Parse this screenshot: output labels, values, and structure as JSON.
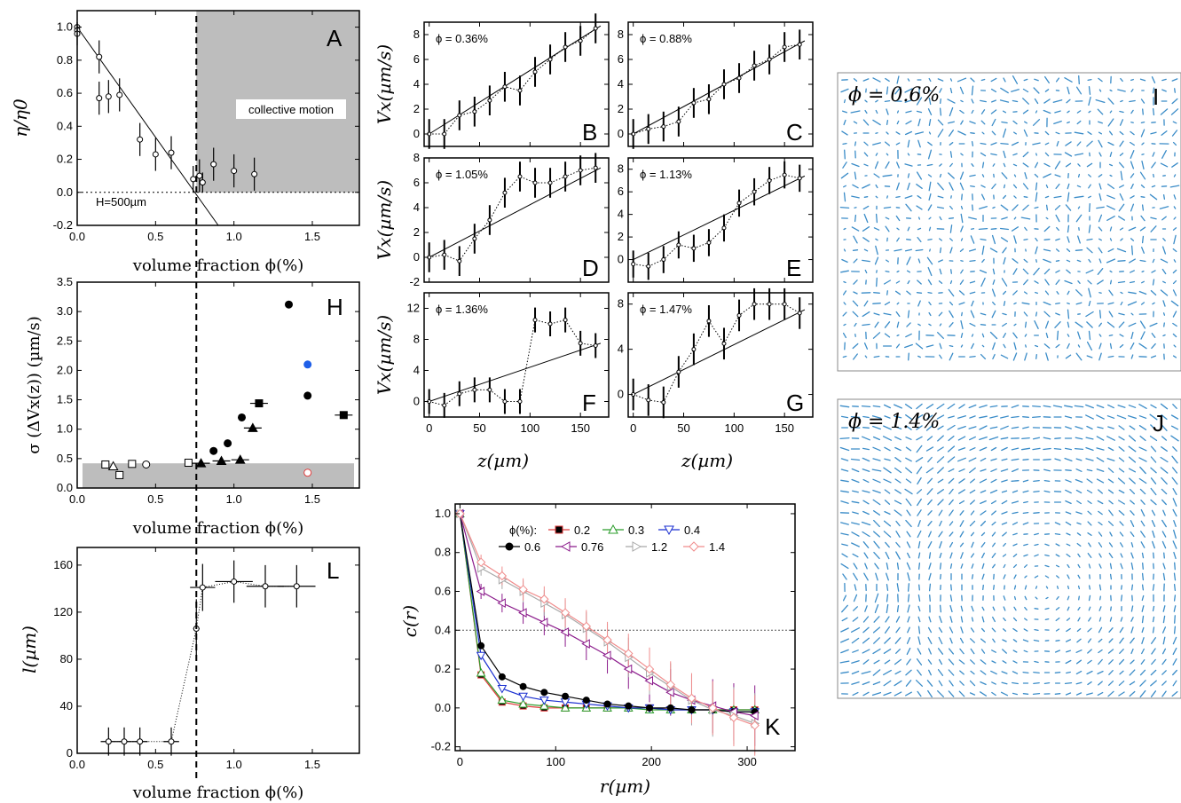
{
  "chart_data": [
    {
      "id": "A",
      "type": "scatter",
      "panel_label": "A",
      "xlabel": "volume fraction ϕ(%)",
      "ylabel": "η/η0",
      "xlim": [
        0,
        1.8
      ],
      "ylim": [
        -0.2,
        1.1
      ],
      "xticks": [
        "0.0",
        "0.5",
        "1.0",
        "1.5"
      ],
      "yticks": [
        "-0.2",
        "0.0",
        "0.2",
        "0.4",
        "0.6",
        "0.8",
        "1.0"
      ],
      "annotations": [
        "collective motion",
        "H=500µm"
      ],
      "shaded_region": {
        "x": [
          0.76,
          1.8
        ],
        "y": [
          0,
          1.1
        ]
      },
      "vline_x": 0.76,
      "points": [
        {
          "x": 0.0,
          "y": 1.0,
          "e": 0.03
        },
        {
          "x": 0.0,
          "y": 0.98,
          "e": 0.04
        },
        {
          "x": 0.0,
          "y": 0.96,
          "e": 0.07
        },
        {
          "x": 0.14,
          "y": 0.82,
          "e": 0.1
        },
        {
          "x": 0.14,
          "y": 0.57,
          "e": 0.1
        },
        {
          "x": 0.2,
          "y": 0.58,
          "e": 0.1
        },
        {
          "x": 0.27,
          "y": 0.59,
          "e": 0.1
        },
        {
          "x": 0.4,
          "y": 0.32,
          "e": 0.1
        },
        {
          "x": 0.5,
          "y": 0.23,
          "e": 0.1
        },
        {
          "x": 0.6,
          "y": 0.24,
          "e": 0.1
        },
        {
          "x": 0.74,
          "y": 0.08,
          "e": 0.08
        },
        {
          "x": 0.78,
          "y": 0.1,
          "e": 0.1
        },
        {
          "x": 0.8,
          "y": 0.06,
          "e": 0.06
        },
        {
          "x": 0.87,
          "y": 0.17,
          "e": 0.1
        },
        {
          "x": 1.0,
          "y": 0.13,
          "e": 0.1
        },
        {
          "x": 1.13,
          "y": 0.11,
          "e": 0.1
        }
      ],
      "fit_line": [
        [
          0,
          1.0
        ],
        [
          0.9,
          -0.2
        ]
      ]
    },
    {
      "id": "H",
      "type": "scatter",
      "panel_label": "H",
      "xlabel": "volume fraction ϕ(%)",
      "ylabel": "σ (ΔVx(z)) (µm/s)",
      "xlim": [
        0,
        1.8
      ],
      "ylim": [
        0,
        3.5
      ],
      "xticks": [
        "0.0",
        "0.5",
        "1.0",
        "1.5"
      ],
      "yticks": [
        "0.0",
        "0.5",
        "1.0",
        "1.5",
        "2.0",
        "2.5",
        "3.0",
        "3.5"
      ],
      "shaded_band": [
        0,
        0.42
      ],
      "points": [
        {
          "x": 0.18,
          "y": 0.4,
          "m": "sq_open"
        },
        {
          "x": 0.23,
          "y": 0.37,
          "m": "tri_open"
        },
        {
          "x": 0.27,
          "y": 0.22,
          "m": "sq_open"
        },
        {
          "x": 0.35,
          "y": 0.41,
          "m": "sq_open"
        },
        {
          "x": 0.44,
          "y": 0.4,
          "m": "ci_open"
        },
        {
          "x": 0.71,
          "y": 0.43,
          "m": "sq_open"
        },
        {
          "x": 0.79,
          "y": 0.42,
          "m": "tri"
        },
        {
          "x": 0.87,
          "y": 0.63,
          "m": "ci"
        },
        {
          "x": 0.92,
          "y": 0.46,
          "m": "tri"
        },
        {
          "x": 0.96,
          "y": 0.76,
          "m": "ci"
        },
        {
          "x": 1.04,
          "y": 0.48,
          "m": "tri"
        },
        {
          "x": 1.05,
          "y": 1.2,
          "m": "ci"
        },
        {
          "x": 1.12,
          "y": 1.02,
          "m": "tri"
        },
        {
          "x": 1.16,
          "y": 1.44,
          "m": "sq"
        },
        {
          "x": 1.35,
          "y": 3.12,
          "m": "ci"
        },
        {
          "x": 1.47,
          "y": 2.1,
          "m": "ci_blue"
        },
        {
          "x": 1.47,
          "y": 1.57,
          "m": "ci"
        },
        {
          "x": 1.47,
          "y": 0.26,
          "m": "ci_red"
        },
        {
          "x": 1.7,
          "y": 1.24,
          "m": "sq"
        }
      ]
    },
    {
      "id": "L",
      "type": "line",
      "panel_label": "L",
      "xlabel": "volume fraction ϕ(%)",
      "ylabel": "l(µm)",
      "xlim": [
        0,
        1.8
      ],
      "ylim": [
        0,
        175
      ],
      "xticks": [
        "0.0",
        "0.5",
        "1.0",
        "1.5"
      ],
      "yticks": [
        "0",
        "40",
        "80",
        "120",
        "160"
      ],
      "points": [
        {
          "x": 0.2,
          "y": 10,
          "ex": 0.05,
          "ey": 12
        },
        {
          "x": 0.3,
          "y": 10,
          "ex": 0.05,
          "ey": 12
        },
        {
          "x": 0.4,
          "y": 10,
          "ex": 0.05,
          "ey": 12
        },
        {
          "x": 0.6,
          "y": 10,
          "ex": 0.05,
          "ey": 12
        },
        {
          "x": 0.76,
          "y": 106,
          "ex": 0.02,
          "ey": 25
        },
        {
          "x": 0.8,
          "y": 141,
          "ex": 0.08,
          "ey": 20
        },
        {
          "x": 1.0,
          "y": 146,
          "ex": 0.12,
          "ey": 18
        },
        {
          "x": 1.2,
          "y": 142,
          "ex": 0.12,
          "ey": 18
        },
        {
          "x": 1.4,
          "y": 142,
          "ex": 0.12,
          "ey": 18
        }
      ]
    },
    {
      "id": "B",
      "type": "line",
      "panel_label": "B",
      "phi": "ϕ = 0.36%",
      "xlim": [
        -5,
        178
      ],
      "ylim": [
        -1,
        9
      ],
      "yticks": [
        "0",
        "2",
        "4",
        "6",
        "8"
      ],
      "ylabel": "Vx(µm/s)",
      "points": [
        [
          0,
          0
        ],
        [
          15,
          0
        ],
        [
          30,
          1.5
        ],
        [
          45,
          1.8
        ],
        [
          60,
          2.7
        ],
        [
          75,
          3.8
        ],
        [
          90,
          3.5
        ],
        [
          105,
          5
        ],
        [
          120,
          6
        ],
        [
          135,
          7
        ],
        [
          150,
          7.5
        ],
        [
          165,
          8.5
        ]
      ],
      "err": 1.2,
      "fit": [
        [
          0,
          0
        ],
        [
          170,
          8.7
        ]
      ]
    },
    {
      "id": "C",
      "type": "line",
      "panel_label": "C",
      "phi": "ϕ = 0.88%",
      "xlim": [
        -5,
        178
      ],
      "ylim": [
        -1,
        9
      ],
      "yticks": [
        "0",
        "2",
        "4",
        "6",
        "8"
      ],
      "points": [
        [
          0,
          0
        ],
        [
          15,
          0.4
        ],
        [
          30,
          0.6
        ],
        [
          45,
          1
        ],
        [
          60,
          2.5
        ],
        [
          75,
          2.8
        ],
        [
          90,
          4
        ],
        [
          105,
          4.5
        ],
        [
          120,
          5.5
        ],
        [
          135,
          6
        ],
        [
          150,
          7
        ],
        [
          165,
          7.2
        ]
      ],
      "err": 1.2,
      "fit": [
        [
          0,
          0
        ],
        [
          170,
          7.5
        ]
      ]
    },
    {
      "id": "D",
      "type": "line",
      "panel_label": "D",
      "phi": "ϕ = 1.05%",
      "xlim": [
        -5,
        178
      ],
      "ylim": [
        -2,
        8
      ],
      "yticks": [
        "-2",
        "0",
        "2",
        "4",
        "6",
        "8"
      ],
      "ylabel": "Vx(µm/s)",
      "points": [
        [
          0,
          0
        ],
        [
          15,
          0.2
        ],
        [
          30,
          -0.3
        ],
        [
          45,
          1.5
        ],
        [
          60,
          3
        ],
        [
          75,
          5.2
        ],
        [
          90,
          6.5
        ],
        [
          105,
          6
        ],
        [
          120,
          6
        ],
        [
          135,
          6.5
        ],
        [
          150,
          7
        ],
        [
          165,
          7.2
        ]
      ],
      "err": 1.2,
      "fit": [
        [
          0,
          0
        ],
        [
          170,
          7.2
        ]
      ]
    },
    {
      "id": "E",
      "type": "line",
      "panel_label": "E",
      "phi": "ϕ = 1.13%",
      "xlim": [
        -5,
        178
      ],
      "ylim": [
        -2,
        9
      ],
      "yticks": [
        "0",
        "2",
        "4",
        "6",
        "8"
      ],
      "points": [
        [
          0,
          -0.4
        ],
        [
          15,
          -0.6
        ],
        [
          30,
          0
        ],
        [
          45,
          1.3
        ],
        [
          60,
          1
        ],
        [
          75,
          1.5
        ],
        [
          90,
          2.8
        ],
        [
          105,
          5
        ],
        [
          120,
          6
        ],
        [
          135,
          7
        ],
        [
          150,
          7.5
        ],
        [
          165,
          7.2
        ]
      ],
      "err": 1.2,
      "fit": [
        [
          0,
          0
        ],
        [
          170,
          7.4
        ]
      ]
    },
    {
      "id": "F",
      "type": "line",
      "panel_label": "F",
      "phi": "ϕ = 1.36%",
      "xlim": [
        -5,
        178
      ],
      "ylim": [
        -2,
        14
      ],
      "yticks": [
        "0",
        "4",
        "8",
        "12"
      ],
      "ylabel": "Vx(µm/s)",
      "points": [
        [
          0,
          0
        ],
        [
          15,
          -0.5
        ],
        [
          30,
          1
        ],
        [
          45,
          1.5
        ],
        [
          60,
          1.5
        ],
        [
          75,
          0
        ],
        [
          90,
          0
        ],
        [
          105,
          10.5
        ],
        [
          120,
          10
        ],
        [
          135,
          10.5
        ],
        [
          150,
          7.5
        ],
        [
          165,
          7.2
        ]
      ],
      "err": 1.6,
      "fit": [
        [
          0,
          0
        ],
        [
          170,
          7.5
        ]
      ]
    },
    {
      "id": "G",
      "type": "line",
      "panel_label": "G",
      "phi": "ϕ = 1.47%",
      "xlim": [
        -5,
        178
      ],
      "ylim": [
        -2,
        9
      ],
      "yticks": [
        "0",
        "4",
        "8"
      ],
      "points": [
        [
          0,
          0
        ],
        [
          15,
          -0.5
        ],
        [
          30,
          -0.7
        ],
        [
          45,
          2
        ],
        [
          60,
          4
        ],
        [
          75,
          6.5
        ],
        [
          90,
          4.5
        ],
        [
          105,
          7
        ],
        [
          120,
          8
        ],
        [
          135,
          8
        ],
        [
          150,
          8
        ],
        [
          165,
          7.2
        ]
      ],
      "err": 1.4,
      "fit": [
        [
          0,
          0
        ],
        [
          170,
          7.5
        ]
      ]
    },
    {
      "id": "K",
      "type": "line",
      "panel_label": "K",
      "xlabel": "r(µm)",
      "ylabel": "c(r)",
      "xlim": [
        -5,
        350
      ],
      "ylim": [
        -0.22,
        1.05
      ],
      "xticks": [
        "0",
        "100",
        "200",
        "300"
      ],
      "yticks": [
        "-0.2",
        "0.0",
        "0.2",
        "0.4",
        "0.6",
        "0.8",
        "1.0"
      ],
      "legend_title": "ϕ(%):",
      "hline": 0.4,
      "r": [
        0,
        22,
        44,
        66,
        88,
        110,
        132,
        154,
        176,
        198,
        220,
        242,
        264,
        286,
        308
      ],
      "series": [
        {
          "name": "0.2",
          "color": "#e03c3c",
          "marker": "sq",
          "values": [
            1.0,
            0.17,
            0.03,
            0.01,
            0.0,
            0.0,
            0.0,
            0.0,
            0.0,
            0.0,
            -0.01,
            -0.01,
            -0.01,
            -0.01,
            -0.01
          ]
        },
        {
          "name": "0.3",
          "color": "#2a9c2a",
          "marker": "tri_up",
          "values": [
            1.0,
            0.18,
            0.04,
            0.02,
            0.01,
            0.0,
            0.0,
            0.0,
            0.0,
            -0.01,
            -0.01,
            -0.01,
            -0.01,
            -0.01,
            -0.01
          ]
        },
        {
          "name": "0.4",
          "color": "#1a2fd0",
          "marker": "tri_down",
          "values": [
            1.0,
            0.27,
            0.1,
            0.06,
            0.04,
            0.03,
            0.02,
            0.01,
            0.0,
            0.0,
            -0.01,
            -0.01,
            -0.01,
            -0.02,
            -0.02
          ]
        },
        {
          "name": "0.6",
          "color": "#000000",
          "marker": "ci",
          "values": [
            1.0,
            0.32,
            0.16,
            0.11,
            0.08,
            0.06,
            0.04,
            0.02,
            0.01,
            0.0,
            0.0,
            -0.01,
            -0.01,
            -0.02,
            -0.02
          ]
        },
        {
          "name": "0.76",
          "color": "#8b1a8b",
          "marker": "tri_left",
          "values": [
            1.0,
            0.6,
            0.54,
            0.49,
            0.44,
            0.39,
            0.33,
            0.27,
            0.2,
            0.14,
            0.08,
            0.04,
            0.01,
            -0.02,
            -0.04
          ]
        },
        {
          "name": "1.2",
          "color": "#a8a8a8",
          "marker": "tri_right",
          "values": [
            1.0,
            0.72,
            0.66,
            0.6,
            0.54,
            0.48,
            0.41,
            0.34,
            0.26,
            0.18,
            0.11,
            0.04,
            -0.01,
            -0.04,
            -0.08
          ]
        },
        {
          "name": "1.4",
          "color": "#f08c8c",
          "marker": "dia",
          "values": [
            1.0,
            0.75,
            0.68,
            0.61,
            0.56,
            0.49,
            0.42,
            0.35,
            0.28,
            0.2,
            0.12,
            0.05,
            0.0,
            -0.05,
            -0.09
          ]
        }
      ]
    }
  ],
  "figure": {
    "panel_I": {
      "label": "I",
      "phi": "ϕ = 0.6%"
    },
    "panel_J": {
      "label": "J",
      "phi": "ϕ = 1.4%"
    },
    "z_label": "z(µm)",
    "z_ticks": [
      "0",
      "50",
      "100",
      "150"
    ],
    "arrow_color": "#3a8cc8"
  }
}
